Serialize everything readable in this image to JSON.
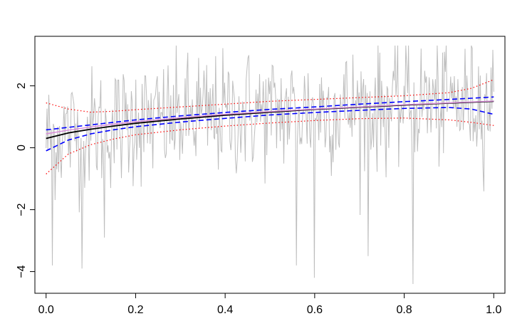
{
  "chart_data": {
    "type": "line",
    "title": "",
    "xlabel": "",
    "ylabel": "",
    "xlim": [
      -0.025,
      1.025
    ],
    "ylim": [
      -4.7,
      3.6
    ],
    "grid": false,
    "legend": "none",
    "x_ticks": [
      0.0,
      0.2,
      0.4,
      0.6,
      0.8,
      1.0
    ],
    "x_tick_labels": [
      "0.0",
      "0.2",
      "0.4",
      "0.6",
      "0.8",
      "1.0"
    ],
    "y_ticks": [
      -4,
      -2,
      0,
      2
    ],
    "y_tick_labels": [
      "−4",
      "−2",
      "0",
      "2"
    ],
    "noisy_series": {
      "color": "#bebebe",
      "n_points": 500,
      "x_range": [
        0.0,
        1.0
      ],
      "approx_min": -4.4,
      "approx_max": 3.3,
      "anchor_points": [
        {
          "x": 0.015,
          "y": -3.8
        },
        {
          "x": 0.08,
          "y": -3.9
        },
        {
          "x": 0.13,
          "y": -2.9
        },
        {
          "x": 0.2,
          "y": 2.2
        },
        {
          "x": 0.34,
          "y": 2.9
        },
        {
          "x": 0.45,
          "y": 2.9
        },
        {
          "x": 0.56,
          "y": -3.8
        },
        {
          "x": 0.6,
          "y": -4.2
        },
        {
          "x": 0.72,
          "y": -3.5
        },
        {
          "x": 0.81,
          "y": 3.3
        },
        {
          "x": 0.82,
          "y": -4.4
        },
        {
          "x": 0.85,
          "y": 2.3
        }
      ]
    },
    "x": [
      0.0,
      0.05,
      0.1,
      0.15,
      0.2,
      0.3,
      0.4,
      0.5,
      0.6,
      0.7,
      0.8,
      0.9,
      0.95,
      1.0
    ],
    "series": [
      {
        "color": "#000000",
        "style": "solid",
        "width": 1.8,
        "values": [
          0.3,
          0.48,
          0.6,
          0.7,
          0.79,
          0.93,
          1.05,
          1.15,
          1.24,
          1.31,
          1.38,
          1.44,
          1.47,
          1.5
        ]
      },
      {
        "color": "#d98cd9",
        "style": "solid",
        "width": 1.4,
        "values": [
          0.45,
          0.57,
          0.67,
          0.76,
          0.84,
          0.97,
          1.08,
          1.17,
          1.25,
          1.32,
          1.39,
          1.45,
          1.48,
          1.51
        ]
      },
      {
        "color": "#0000ff",
        "style": "dashed",
        "width": 1.6,
        "values": [
          0.58,
          0.66,
          0.74,
          0.82,
          0.9,
          1.03,
          1.14,
          1.24,
          1.32,
          1.41,
          1.49,
          1.56,
          1.6,
          1.64
        ]
      },
      {
        "color": "#0000ff",
        "style": "dashed",
        "width": 1.6,
        "values": [
          -0.1,
          0.25,
          0.45,
          0.58,
          0.68,
          0.83,
          0.95,
          1.06,
          1.14,
          1.21,
          1.27,
          1.3,
          1.25,
          1.08
        ]
      },
      {
        "color": "#ff0000",
        "style": "dotted",
        "width": 1.2,
        "values": [
          1.45,
          1.25,
          1.15,
          1.18,
          1.23,
          1.32,
          1.41,
          1.5,
          1.56,
          1.62,
          1.68,
          1.78,
          1.92,
          2.2
        ]
      },
      {
        "color": "#ff0000",
        "style": "dotted",
        "width": 1.2,
        "values": [
          -0.85,
          -0.2,
          0.1,
          0.28,
          0.42,
          0.58,
          0.7,
          0.8,
          0.88,
          0.94,
          0.96,
          0.9,
          0.82,
          0.72
        ]
      }
    ]
  }
}
